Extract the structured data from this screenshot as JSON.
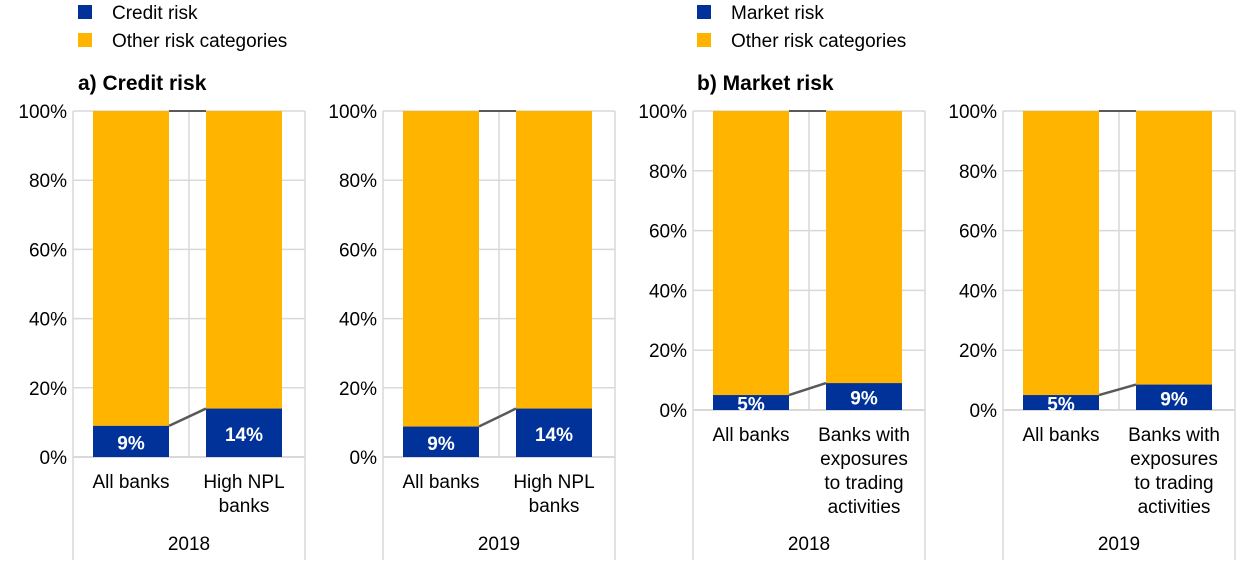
{
  "colors": {
    "primary": "#003299",
    "other": "#FFB400",
    "grid": "#D9D9D9",
    "connector": "#595959",
    "text": "#000000"
  },
  "chart_data": [
    {
      "type": "bar",
      "stacked": true,
      "panel_title": "a) Credit risk",
      "legend": [
        "Credit risk",
        "Other risk categories"
      ],
      "ylim": [
        0,
        100
      ],
      "yticks": [
        "0%",
        "20%",
        "40%",
        "60%",
        "80%",
        "100%"
      ],
      "groups": [
        {
          "label": "2018",
          "categories": [
            "All banks",
            "High NPL banks"
          ],
          "values": [
            9,
            14
          ],
          "labels": [
            "9%",
            "14%"
          ]
        },
        {
          "label": "2019",
          "categories": [
            "All banks",
            "High NPL banks"
          ],
          "values": [
            8.8,
            14
          ],
          "labels": [
            "9%",
            "14%"
          ]
        }
      ]
    },
    {
      "type": "bar",
      "stacked": true,
      "panel_title": "b) Market risk",
      "legend": [
        "Market risk",
        "Other risk categories"
      ],
      "ylim": [
        0,
        100
      ],
      "yticks": [
        "0%",
        "20%",
        "40%",
        "60%",
        "80%",
        "100%"
      ],
      "groups": [
        {
          "label": "2018",
          "categories": [
            "All banks",
            "Banks with exposures to trading activities"
          ],
          "values": [
            5,
            9
          ],
          "labels": [
            "5%",
            "9%"
          ]
        },
        {
          "label": "2019",
          "categories": [
            "All banks",
            "Banks with exposures to trading activities"
          ],
          "values": [
            5,
            8.5
          ],
          "labels": [
            "5%",
            "9%"
          ]
        }
      ]
    }
  ]
}
